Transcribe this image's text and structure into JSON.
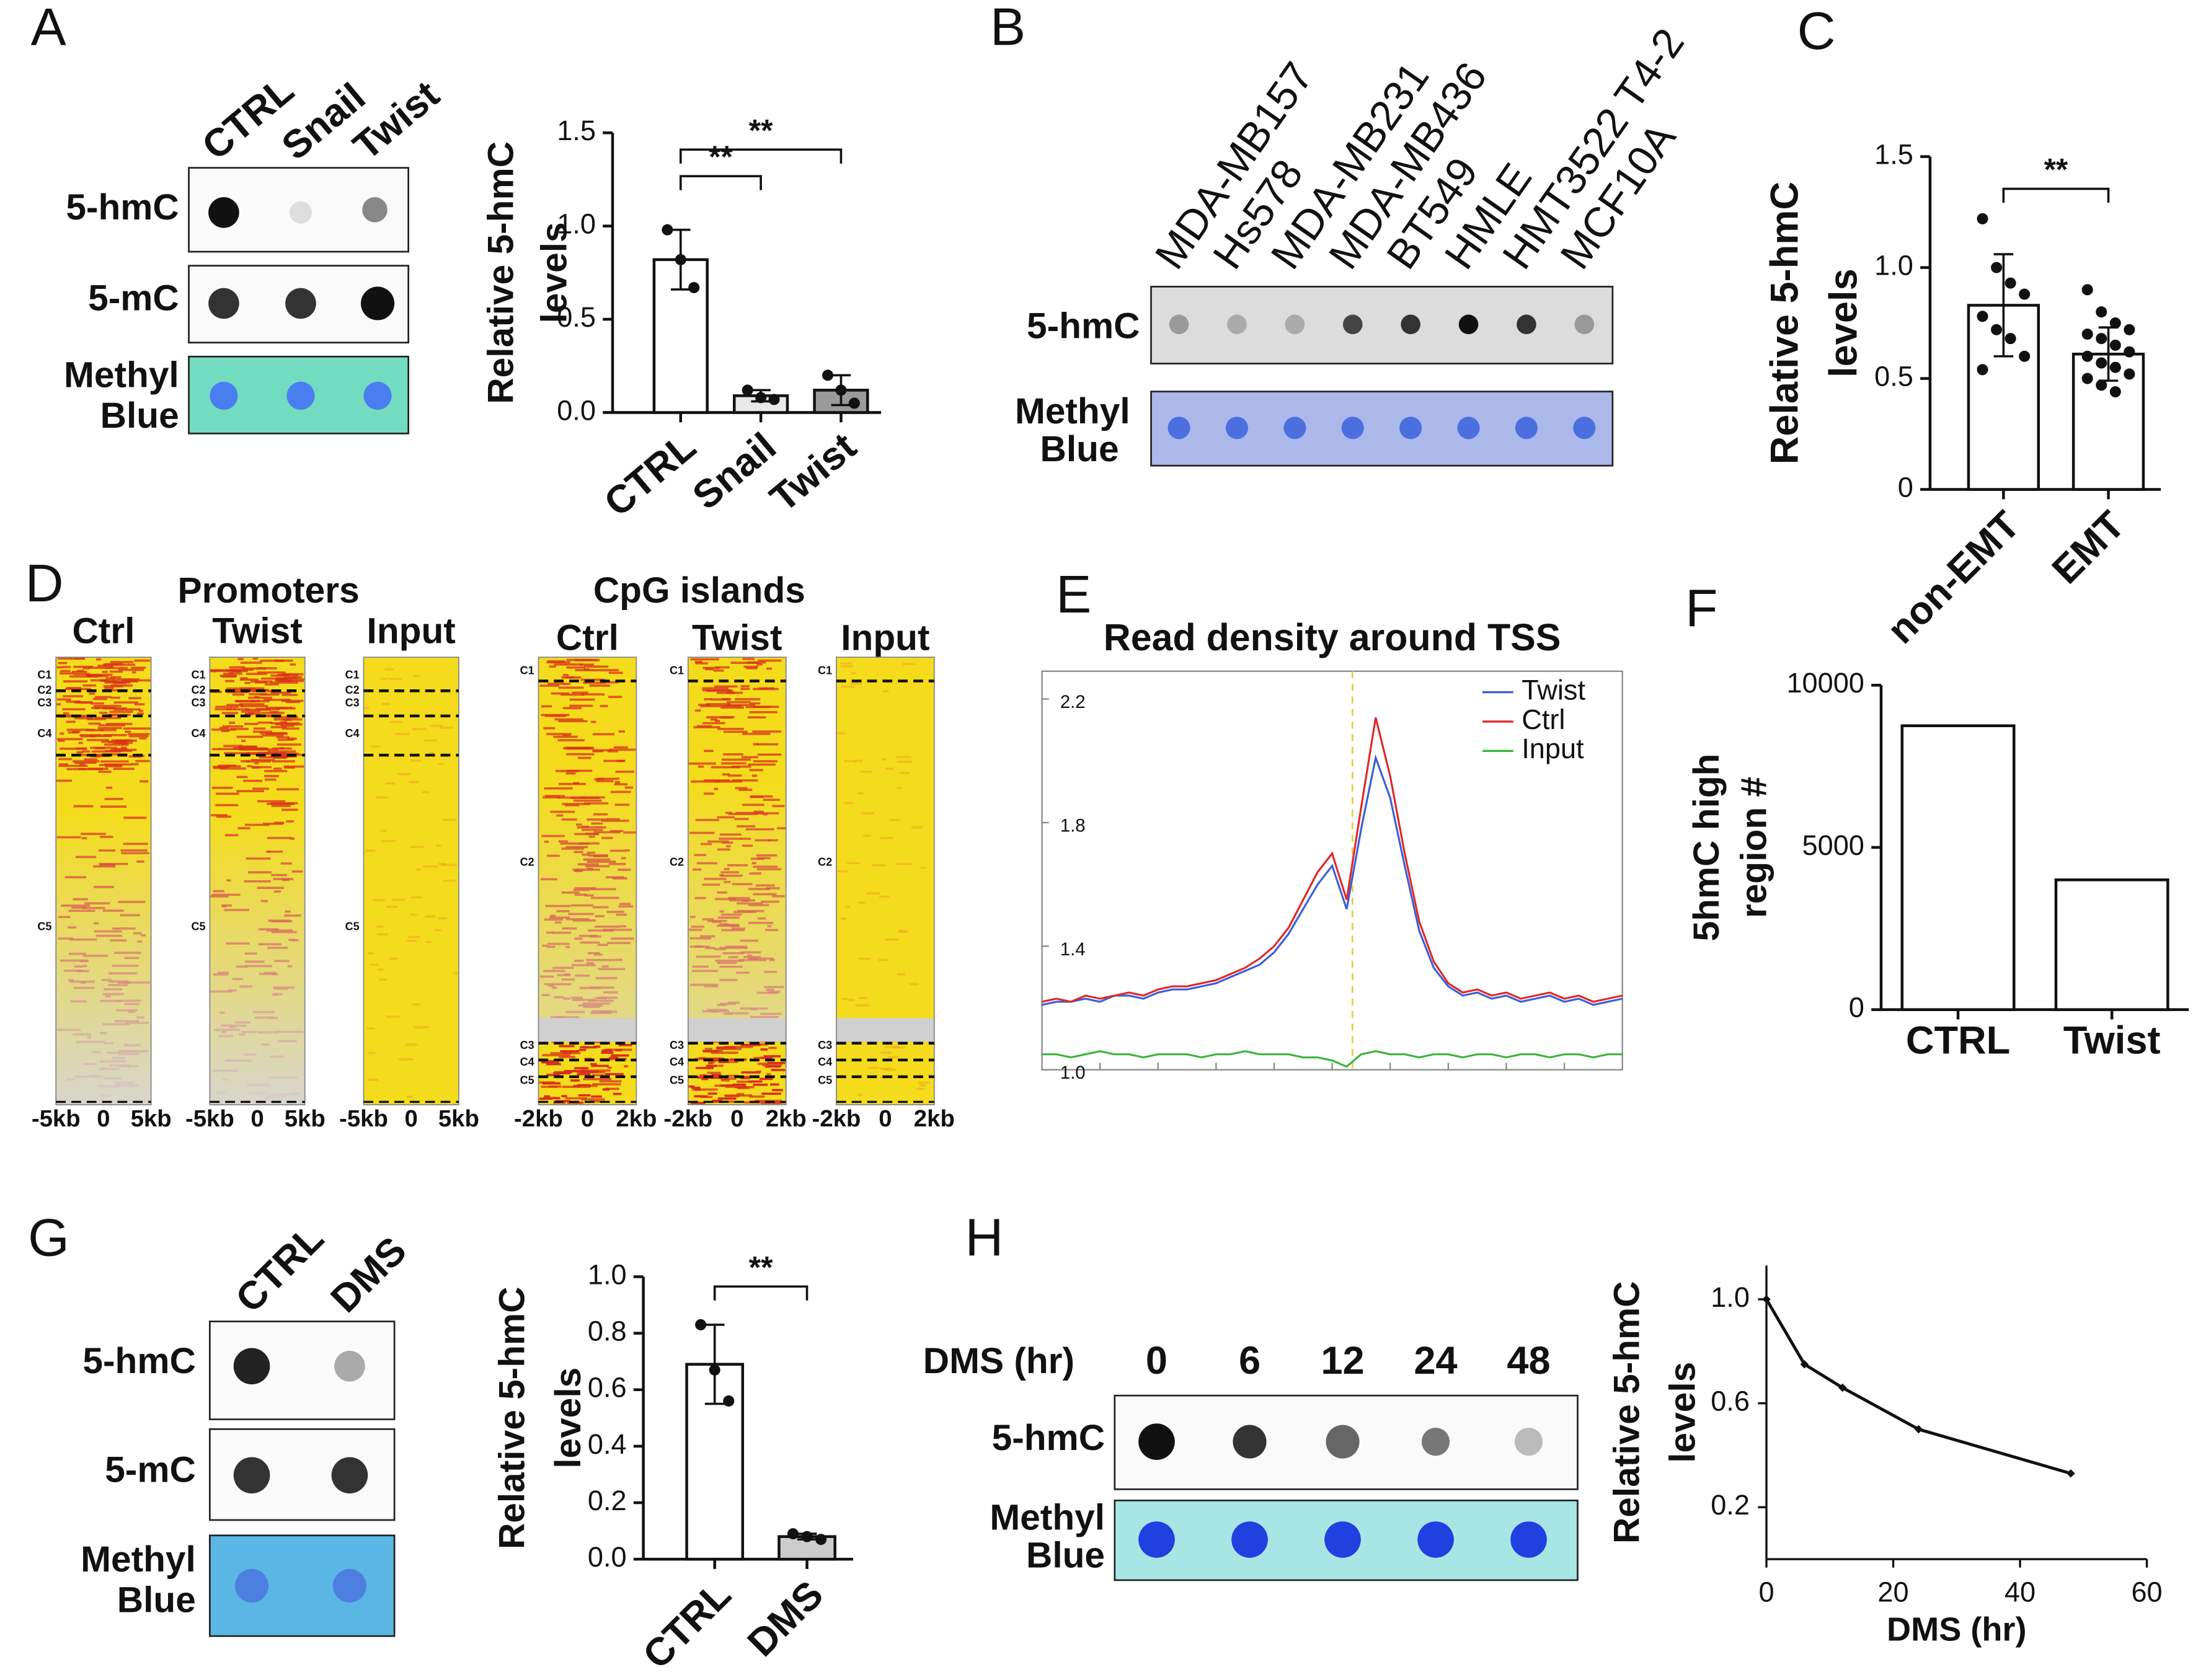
{
  "panels": [
    "A",
    "B",
    "C",
    "D",
    "E",
    "F",
    "G",
    "H"
  ],
  "blot_a": {
    "columns": [
      "CTRL",
      "Snail",
      "Twist"
    ],
    "rows": [
      [
        "5-hmC"
      ],
      [
        "5-mC"
      ],
      [
        "Methyl",
        "Blue"
      ]
    ]
  },
  "blot_b": {
    "columns": [
      {
        "text": "MDA-MB157",
        "color": "#e0301e"
      },
      {
        "text": "Hs578",
        "color": "#e0301e"
      },
      {
        "text": "MDA-MB231",
        "color": "#e0301e"
      },
      {
        "text": "MDA-MB436",
        "color": "#e0301e"
      },
      {
        "text": "BT549",
        "color": "#e0301e"
      },
      {
        "text": "HMLE",
        "color": "#111111"
      },
      {
        "text": "HMT3522 T4-2",
        "color": "#111111"
      },
      {
        "text": "MCF10A",
        "color": "#111111"
      }
    ],
    "rows": [
      [
        "5-hmC"
      ],
      [
        "Methyl",
        "Blue"
      ]
    ]
  },
  "blot_g": {
    "columns": [
      "CTRL",
      "DMS"
    ],
    "rows": [
      [
        "5-hmC"
      ],
      [
        "5-mC"
      ],
      [
        "Methyl",
        "Blue"
      ]
    ]
  },
  "blot_h": {
    "header": "DMS (hr)",
    "columns": [
      "0",
      "6",
      "12",
      "24",
      "48"
    ],
    "rows": [
      [
        "5-hmC"
      ],
      [
        "Methyl",
        "Blue"
      ]
    ]
  },
  "heatmaps": [
    {
      "title": "Promoters",
      "columns": [
        "Ctrl",
        "Twist",
        "Input"
      ],
      "x_labels": [
        "-5kb",
        "0",
        "5kb"
      ],
      "clusters": [
        "C1",
        "C2",
        "C3",
        "C4",
        "C5"
      ]
    },
    {
      "title": "CpG islands",
      "columns": [
        "Ctrl",
        "Twist",
        "Input"
      ],
      "x_labels": [
        "-2kb",
        "0",
        "2kb"
      ],
      "clusters": [
        "C1",
        "C2",
        "C3",
        "C4",
        "C5"
      ]
    }
  ],
  "chart_data": [
    {
      "type": "bar",
      "y_label": [
        "Relative 5-hmC",
        "levels"
      ],
      "categories": [
        "CTRL",
        "Snail",
        "Twist"
      ],
      "values": [
        0.82,
        0.09,
        0.12
      ],
      "errors": [
        0.16,
        0.03,
        0.08
      ],
      "points": [
        [
          0.98,
          0.82,
          0.67
        ],
        [
          0.12,
          0.08,
          0.07
        ],
        [
          0.2,
          0.12,
          0.05
        ]
      ],
      "colors": [
        "#ffffff",
        "#e8e8e8",
        "#9a9a9a"
      ],
      "ylim": [
        0,
        1.5
      ],
      "yticks": [
        {
          "value": 0,
          "label": "0.0"
        },
        0.5,
        {
          "value": 1,
          "label": "1.0"
        },
        1.5
      ],
      "annotations": [
        "**",
        "**"
      ]
    },
    {
      "type": "bar",
      "y_label": [
        "Relative 5-hmC",
        "levels"
      ],
      "categories": [
        "non-EMT",
        "EMT"
      ],
      "values": [
        0.83,
        0.61
      ],
      "errors": [
        0.23,
        0.12
      ],
      "points": [
        [
          1.22,
          1.0,
          0.93,
          0.88,
          0.78,
          0.72,
          0.68,
          0.6,
          0.54
        ],
        [
          0.9,
          0.8,
          0.75,
          0.72,
          0.7,
          0.68,
          0.65,
          0.62,
          0.6,
          0.57,
          0.55,
          0.52,
          0.5,
          0.47,
          0.44
        ]
      ],
      "colors": [
        "#ffffff",
        "#ffffff"
      ],
      "ylim": [
        0,
        1.5
      ],
      "yticks": [
        0,
        0.5,
        {
          "value": 1,
          "label": "1.0"
        },
        1.5
      ],
      "annotations": [
        "**"
      ]
    },
    {
      "type": "line",
      "title": "Read density around TSS",
      "x": [
        0,
        1,
        2,
        3,
        4,
        5,
        6,
        7,
        8,
        9,
        10,
        11,
        12,
        13,
        14,
        15,
        16,
        17,
        18,
        19,
        20,
        21,
        22,
        23,
        24,
        25,
        26,
        27,
        28,
        29,
        30,
        31,
        32,
        33,
        34,
        35,
        36,
        37,
        38,
        39,
        40
      ],
      "xlim": [
        0,
        40
      ],
      "ylim": [
        1.0,
        2.29
      ],
      "yticks": [
        {
          "value": 1,
          "label": "1.0"
        },
        1.4,
        1.8,
        2.2
      ],
      "series": [
        {
          "name": "Twist",
          "color": "#3a5fd8",
          "values": [
            1.21,
            1.22,
            1.22,
            1.23,
            1.22,
            1.24,
            1.24,
            1.23,
            1.25,
            1.26,
            1.26,
            1.27,
            1.28,
            1.3,
            1.32,
            1.34,
            1.38,
            1.44,
            1.52,
            1.6,
            1.66,
            1.52,
            1.78,
            2.01,
            1.88,
            1.66,
            1.45,
            1.33,
            1.27,
            1.24,
            1.25,
            1.23,
            1.24,
            1.22,
            1.23,
            1.24,
            1.22,
            1.23,
            1.21,
            1.22,
            1.23
          ]
        },
        {
          "name": "Ctrl",
          "color": "#e02828",
          "values": [
            1.22,
            1.23,
            1.22,
            1.24,
            1.23,
            1.24,
            1.25,
            1.24,
            1.26,
            1.27,
            1.27,
            1.28,
            1.29,
            1.31,
            1.33,
            1.36,
            1.4,
            1.46,
            1.55,
            1.64,
            1.7,
            1.55,
            1.85,
            2.14,
            1.95,
            1.7,
            1.48,
            1.35,
            1.28,
            1.25,
            1.26,
            1.24,
            1.25,
            1.23,
            1.24,
            1.25,
            1.23,
            1.24,
            1.22,
            1.23,
            1.24
          ]
        },
        {
          "name": "Input",
          "color": "#3cb43c",
          "values": [
            1.05,
            1.05,
            1.04,
            1.05,
            1.06,
            1.05,
            1.05,
            1.04,
            1.05,
            1.05,
            1.05,
            1.04,
            1.05,
            1.05,
            1.06,
            1.05,
            1.05,
            1.05,
            1.04,
            1.04,
            1.03,
            1.01,
            1.05,
            1.06,
            1.05,
            1.05,
            1.04,
            1.05,
            1.05,
            1.04,
            1.05,
            1.05,
            1.04,
            1.05,
            1.05,
            1.04,
            1.05,
            1.05,
            1.04,
            1.05,
            1.05
          ]
        }
      ]
    },
    {
      "type": "bar",
      "y_label": [
        "5hmC high",
        "region #"
      ],
      "categories": [
        "CTRL",
        "Twist"
      ],
      "values": [
        8750,
        4000
      ],
      "colors": [
        "#ffffff",
        "#ffffff"
      ],
      "ylim": [
        0,
        10000
      ],
      "yticks": [
        0,
        5000,
        10000
      ]
    },
    {
      "type": "bar",
      "y_label": [
        "Relative 5-hmC",
        "levels"
      ],
      "categories": [
        "CTRL",
        "DMS"
      ],
      "values": [
        0.69,
        0.08
      ],
      "errors": [
        0.14,
        0.01
      ],
      "points": [
        [
          0.83,
          0.67,
          0.56
        ],
        [
          0.09,
          0.08,
          0.07
        ]
      ],
      "colors": [
        "#ffffff",
        "#cccccc"
      ],
      "ylim": [
        0,
        1
      ],
      "yticks": [
        {
          "value": 0,
          "label": "0.0"
        },
        0.2,
        0.4,
        0.6,
        0.8,
        {
          "value": 1,
          "label": "1.0"
        }
      ],
      "annotations": [
        "**"
      ]
    },
    {
      "type": "line",
      "x_label": "DMS (hr)",
      "y_label": [
        "Relative 5-hmC",
        "levels"
      ],
      "x": [
        0,
        6,
        12,
        24,
        48
      ],
      "xlim": [
        0,
        60
      ],
      "xticks": [
        0,
        20,
        40,
        60
      ],
      "ylim": [
        0,
        1.13
      ],
      "yticks": [
        0.2,
        0.6,
        {
          "value": 1,
          "label": "1.0"
        }
      ],
      "series": [
        {
          "color": "#111111",
          "values": [
            1.0,
            0.75,
            0.66,
            0.5,
            0.33
          ]
        }
      ]
    }
  ]
}
